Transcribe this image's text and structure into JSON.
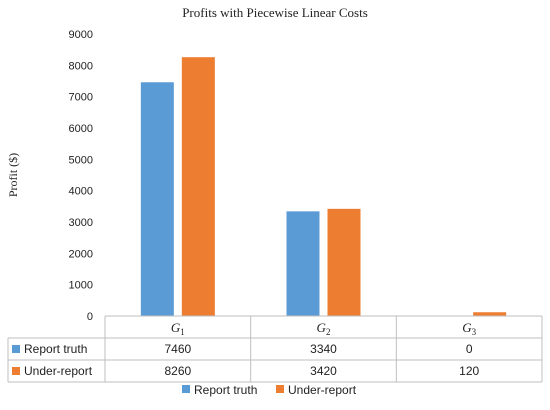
{
  "chart_data": {
    "type": "bar",
    "title": "Profits with Piecewise Linear Costs",
    "ylabel": "Profit ($)",
    "xlabel": "",
    "ylim": [
      0,
      9000
    ],
    "yticks": [
      0,
      1000,
      2000,
      3000,
      4000,
      5000,
      6000,
      7000,
      8000,
      9000
    ],
    "grid": false,
    "legend_position": "bottom",
    "categories": [
      {
        "base": "G",
        "sub": "1"
      },
      {
        "base": "G",
        "sub": "2"
      },
      {
        "base": "G",
        "sub": "3"
      }
    ],
    "series": [
      {
        "name": "Report truth",
        "color": "#5b9bd5",
        "values": [
          7460,
          3340,
          0
        ]
      },
      {
        "name": "Under-report",
        "color": "#ed7d31",
        "values": [
          8260,
          3420,
          120
        ]
      }
    ],
    "data_table": true
  }
}
